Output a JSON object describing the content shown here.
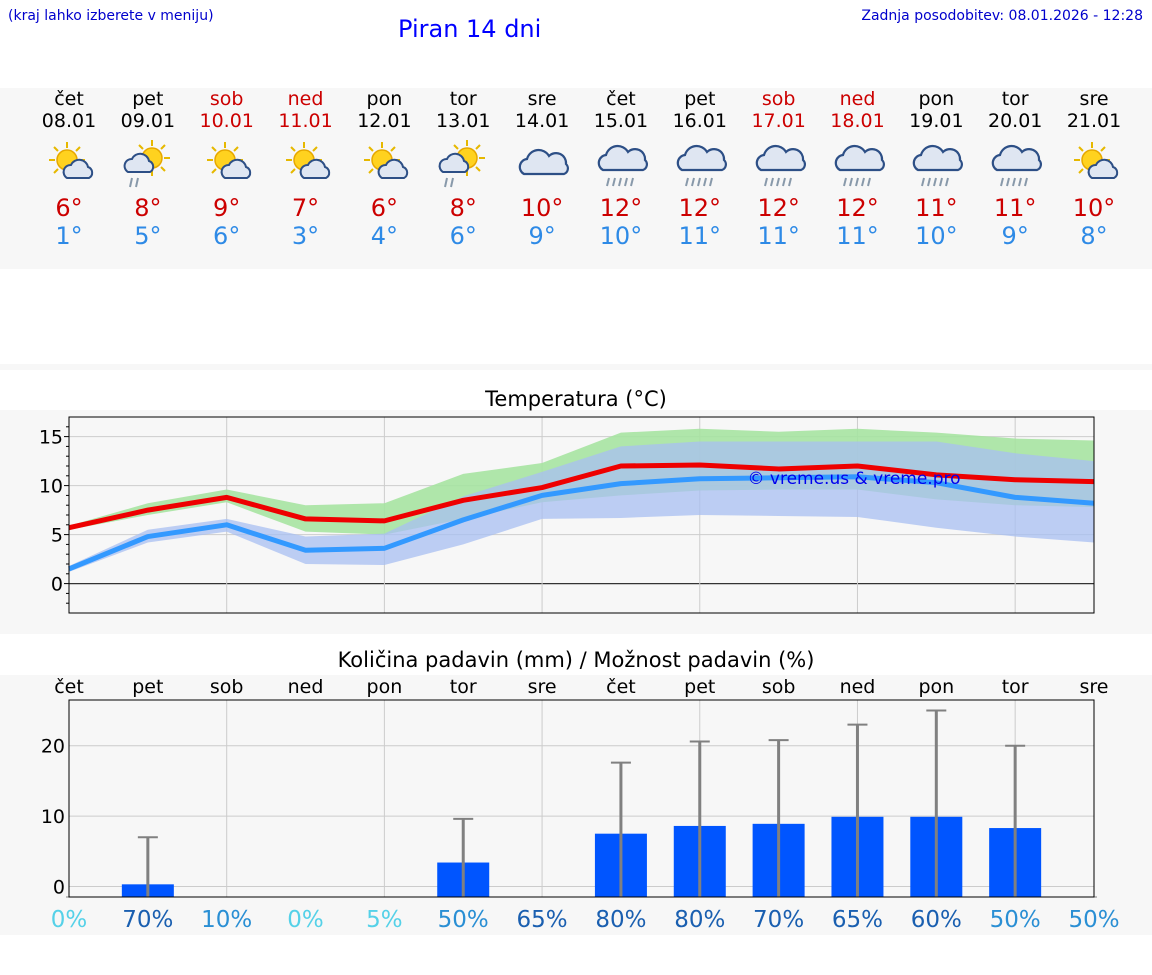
{
  "header": {
    "hint": "(kraj lahko izberete v meniju)",
    "title": "Piran 14 dni",
    "updated": "Zadnja posodobitev: 08.01.2026 - 12:28"
  },
  "days": [
    {
      "name": "čet",
      "date": "08.01",
      "weekend": false,
      "icon": "sun-cloud-icon",
      "max": "6°",
      "min": "1°"
    },
    {
      "name": "pet",
      "date": "09.01",
      "weekend": false,
      "icon": "sun-cloud-rain-icon",
      "max": "8°",
      "min": "5°"
    },
    {
      "name": "sob",
      "date": "10.01",
      "weekend": true,
      "icon": "sun-cloud-icon",
      "max": "9°",
      "min": "6°"
    },
    {
      "name": "ned",
      "date": "11.01",
      "weekend": true,
      "icon": "sun-cloud-icon",
      "max": "7°",
      "min": "3°"
    },
    {
      "name": "pon",
      "date": "12.01",
      "weekend": false,
      "icon": "sun-cloud-icon",
      "max": "6°",
      "min": "4°"
    },
    {
      "name": "tor",
      "date": "13.01",
      "weekend": false,
      "icon": "sun-cloud-rain-icon",
      "max": "8°",
      "min": "6°"
    },
    {
      "name": "sre",
      "date": "14.01",
      "weekend": false,
      "icon": "cloud-icon",
      "max": "10°",
      "min": "9°"
    },
    {
      "name": "čet",
      "date": "15.01",
      "weekend": false,
      "icon": "cloud-rain-icon",
      "max": "12°",
      "min": "10°"
    },
    {
      "name": "pet",
      "date": "16.01",
      "weekend": false,
      "icon": "cloud-rain-icon",
      "max": "12°",
      "min": "11°"
    },
    {
      "name": "sob",
      "date": "17.01",
      "weekend": true,
      "icon": "cloud-rain-icon",
      "max": "12°",
      "min": "11°"
    },
    {
      "name": "ned",
      "date": "18.01",
      "weekend": true,
      "icon": "cloud-rain-icon",
      "max": "12°",
      "min": "11°"
    },
    {
      "name": "pon",
      "date": "19.01",
      "weekend": false,
      "icon": "cloud-rain-icon",
      "max": "11°",
      "min": "10°"
    },
    {
      "name": "tor",
      "date": "20.01",
      "weekend": false,
      "icon": "cloud-rain-icon",
      "max": "11°",
      "min": "9°"
    },
    {
      "name": "sre",
      "date": "21.01",
      "weekend": false,
      "icon": "sun-cloud-icon",
      "max": "10°",
      "min": "8°"
    }
  ],
  "colors": {
    "max_line": "#ee0000",
    "min_line": "#3399ff",
    "max_band": "#a6e3a1",
    "min_band": "#a8bff2",
    "overlap_band": "#7cc5a6",
    "bar": "#0055ff",
    "whisker": "#808080",
    "weekend": "#cc0000"
  },
  "chart_data": [
    {
      "type": "line",
      "title": "Temperatura (°C)",
      "watermark": "© vreme.us & vreme.pro",
      "ylim": [
        -3,
        17
      ],
      "yticks": [
        0,
        5,
        10,
        15
      ],
      "x": [
        0,
        1,
        2,
        3,
        4,
        5,
        6,
        7,
        8,
        9,
        10,
        11,
        12,
        13
      ],
      "series": [
        {
          "name": "max",
          "values": [
            5.7,
            7.5,
            8.8,
            6.6,
            6.4,
            8.5,
            9.8,
            12.0,
            12.1,
            11.7,
            12.0,
            11.1,
            10.6,
            10.4
          ]
        },
        {
          "name": "min",
          "values": [
            1.5,
            4.8,
            6.0,
            3.4,
            3.6,
            6.5,
            9.0,
            10.2,
            10.7,
            10.8,
            10.9,
            10.3,
            8.8,
            8.2
          ]
        }
      ],
      "bands": [
        {
          "name": "max_range",
          "lower": [
            5.5,
            7.0,
            8.3,
            5.3,
            5.0,
            6.6,
            8.3,
            9.0,
            9.5,
            9.6,
            9.6,
            8.6,
            8.0,
            7.8
          ],
          "upper": [
            5.9,
            8.2,
            9.6,
            8.0,
            8.2,
            11.2,
            12.3,
            15.4,
            15.8,
            15.5,
            15.8,
            15.4,
            14.8,
            14.6
          ]
        },
        {
          "name": "min_range",
          "lower": [
            1.2,
            4.2,
            5.3,
            2.0,
            1.9,
            4.0,
            6.6,
            6.7,
            7.0,
            6.9,
            6.8,
            5.7,
            4.8,
            4.2
          ],
          "upper": [
            1.8,
            5.5,
            6.6,
            4.8,
            5.1,
            8.9,
            11.4,
            14.0,
            14.5,
            14.5,
            14.5,
            14.5,
            13.3,
            12.5
          ]
        }
      ]
    },
    {
      "type": "bar",
      "title": "Količina padavin (mm) / Možnost padavin (%)",
      "categories": [
        "čet",
        "pet",
        "sob",
        "ned",
        "pon",
        "tor",
        "sre",
        "čet",
        "pet",
        "sob",
        "ned",
        "pon",
        "tor",
        "sre"
      ],
      "ylim": [
        -1.5,
        26.5
      ],
      "yticks": [
        0,
        10,
        20
      ],
      "values": [
        0,
        0.3,
        0,
        0,
        0,
        3.4,
        0,
        7.5,
        8.6,
        8.9,
        9.9,
        9.9,
        8.3,
        0
      ],
      "upper": [
        0,
        7.0,
        0,
        0,
        0,
        9.6,
        0,
        17.6,
        20.6,
        20.8,
        23.0,
        25.0,
        20.0,
        0
      ],
      "probability": [
        "0%",
        "70%",
        "10%",
        "0%",
        "5%",
        "50%",
        "65%",
        "80%",
        "80%",
        "70%",
        "65%",
        "60%",
        "50%",
        "50%"
      ],
      "probability_values": [
        0,
        70,
        10,
        0,
        5,
        50,
        65,
        80,
        80,
        70,
        65,
        60,
        50,
        50
      ]
    }
  ]
}
